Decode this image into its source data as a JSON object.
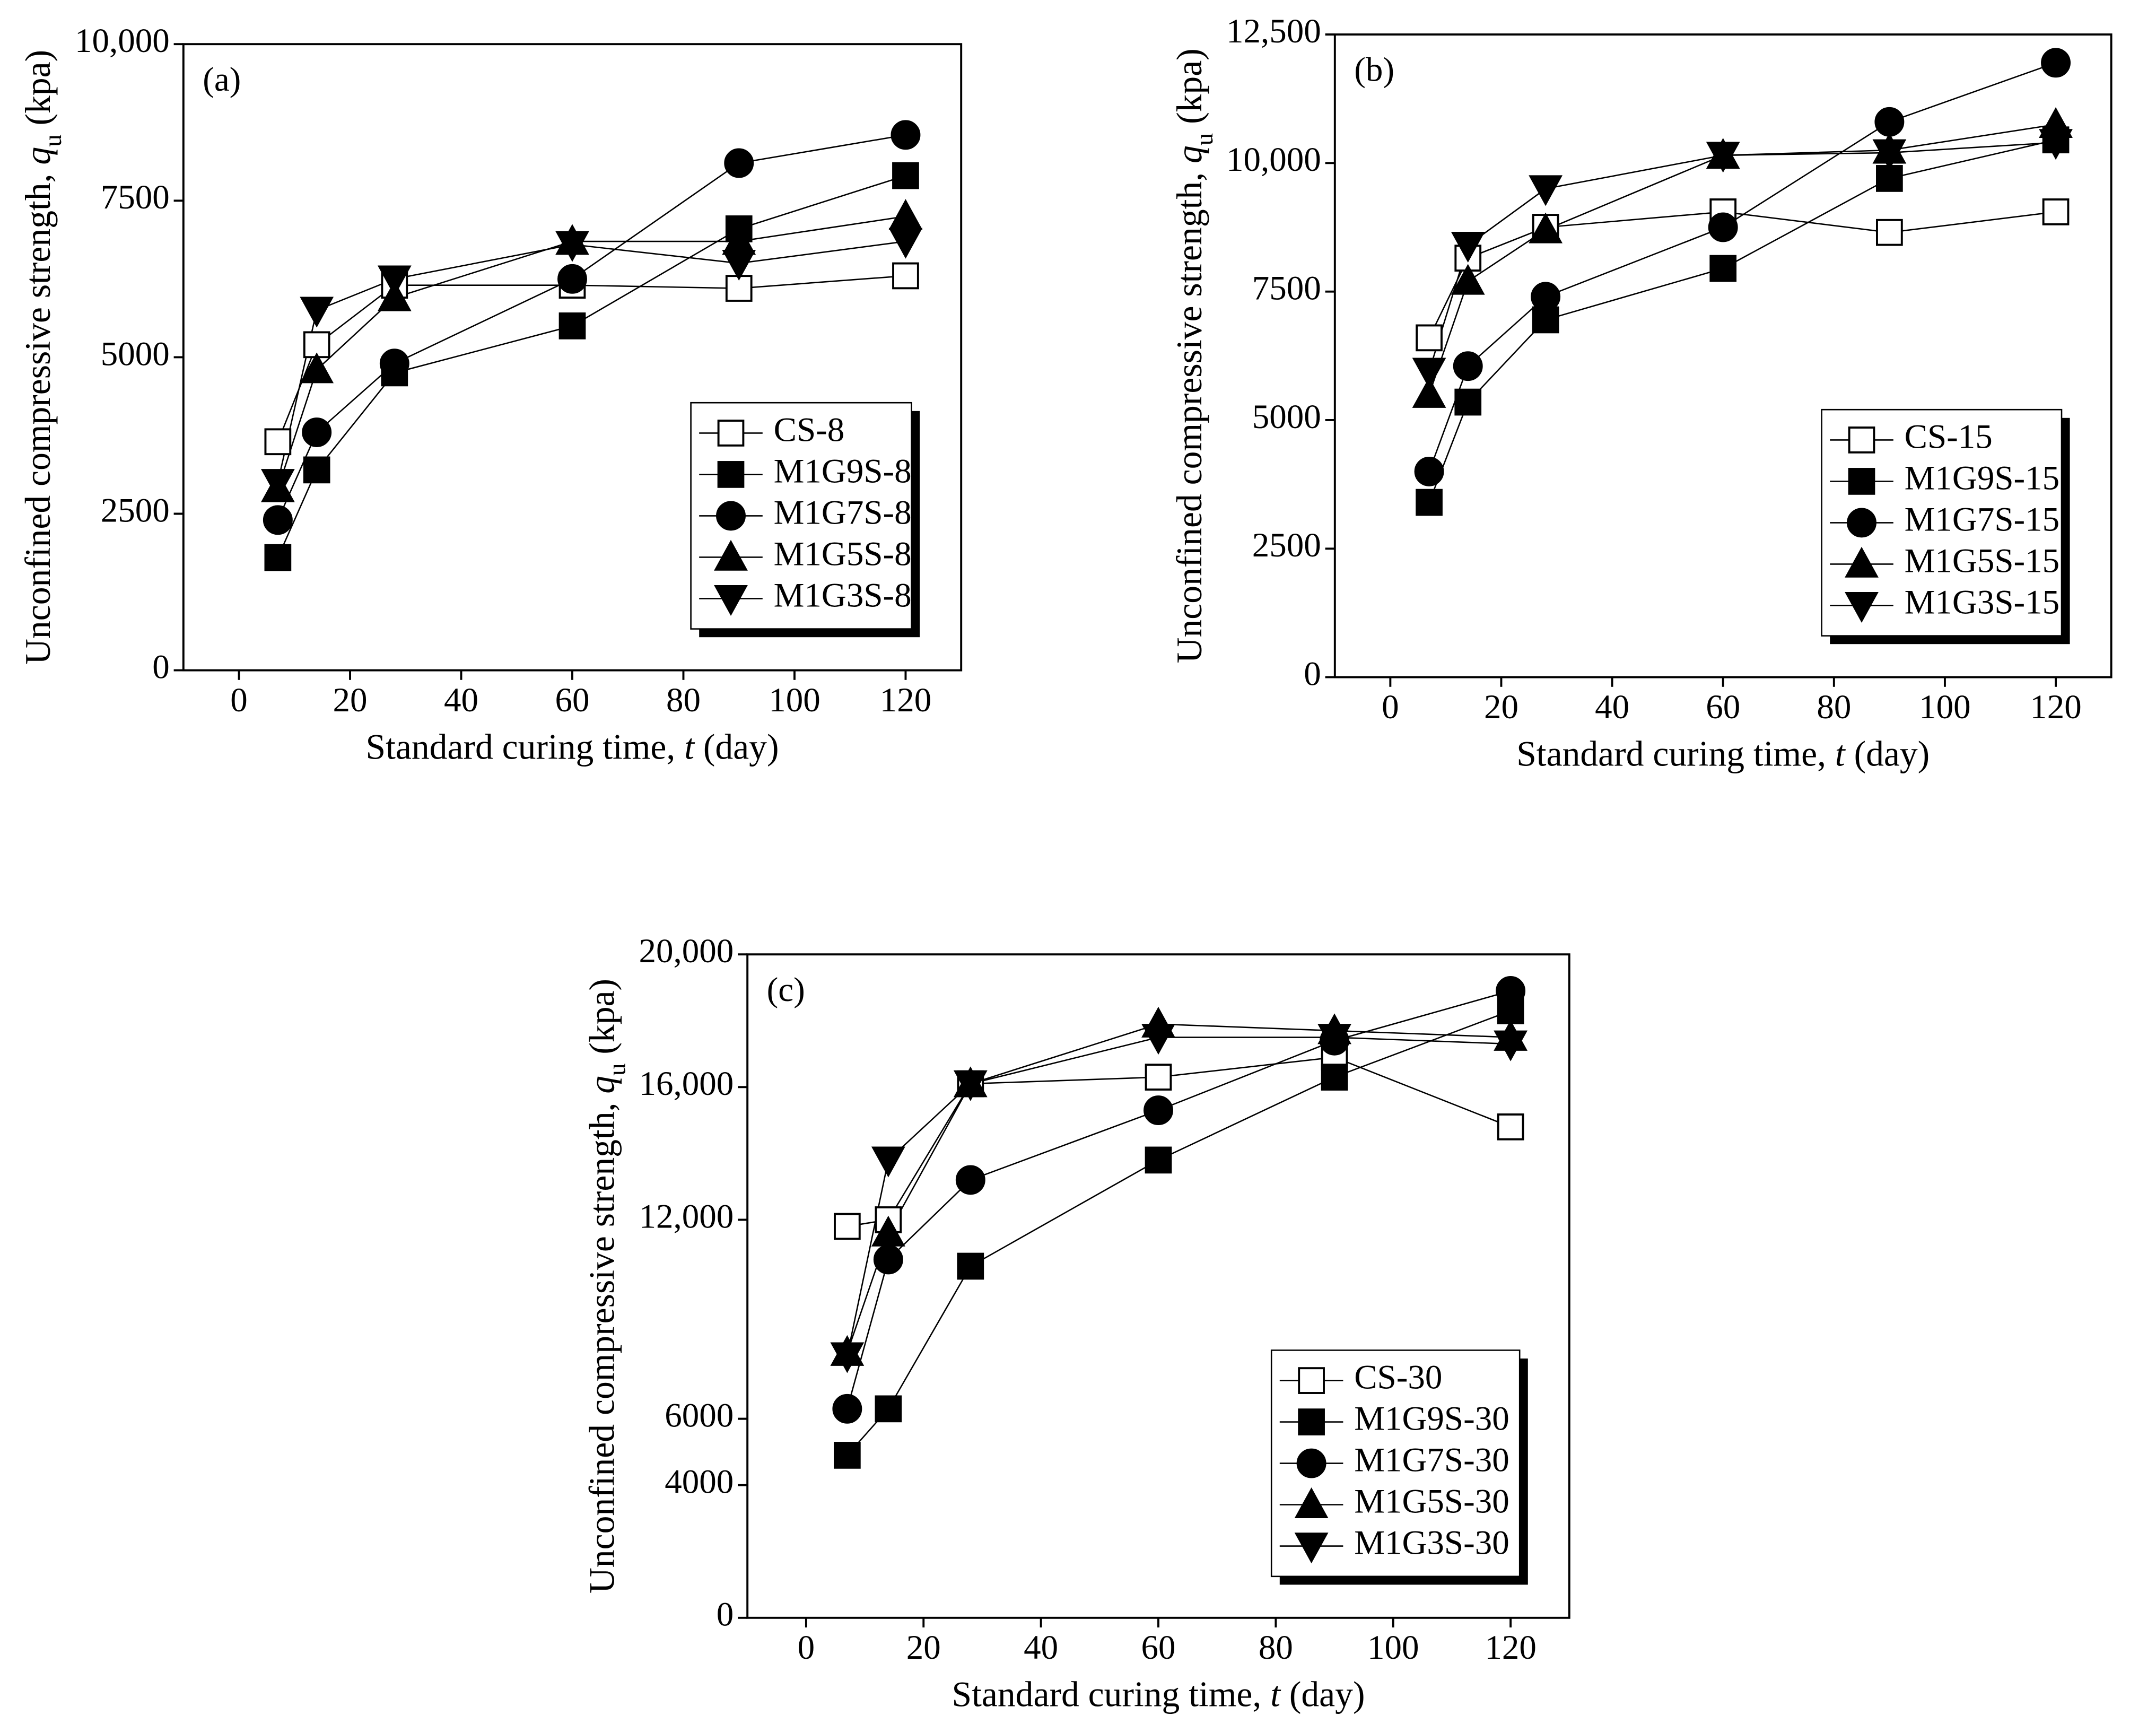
{
  "chart_data": [
    {
      "type": "line",
      "annotation": "(a)",
      "xlabel": [
        "Standard curing time, ",
        "t",
        " (day)"
      ],
      "ylabel": [
        "Unconfined compressive strength, ",
        "q",
        "u",
        " (kpa)"
      ],
      "x": [
        7,
        14,
        28,
        60,
        90,
        120
      ],
      "xlim": [
        -10,
        130
      ],
      "xticks": [
        0,
        20,
        40,
        60,
        80,
        100,
        120
      ],
      "ylim": [
        0,
        10000
      ],
      "yticks": [
        0,
        2500,
        5000,
        7500,
        {
          "value": 10000,
          "label": "10,000"
        }
      ],
      "legend": "lower right",
      "series": [
        {
          "name": "CS-8",
          "color": "#000000",
          "marker": "square-open",
          "values": [
            3650,
            5200,
            6150,
            6150,
            6100,
            6300
          ]
        },
        {
          "name": "M1G9S-8",
          "color": "#000000",
          "marker": "square",
          "values": [
            1800,
            3200,
            4750,
            5500,
            7050,
            7900
          ]
        },
        {
          "name": "M1G7S-8",
          "color": "#000000",
          "marker": "circle",
          "values": [
            2400,
            3800,
            4900,
            6250,
            8100,
            8550
          ]
        },
        {
          "name": "M1G5S-8",
          "color": "#000000",
          "marker": "triangle-up",
          "values": [
            2900,
            4800,
            5950,
            6850,
            6850,
            7250
          ]
        },
        {
          "name": "M1G3S-8",
          "color": "#000000",
          "marker": "triangle-down",
          "values": [
            3000,
            5750,
            6250,
            6800,
            6500,
            6850
          ]
        }
      ]
    },
    {
      "type": "line",
      "annotation": "(b)",
      "xlabel": [
        "Standard curing time, ",
        "t",
        " (day)"
      ],
      "ylabel": [
        "Unconfined compressive strength, ",
        "q",
        "u",
        " (kpa)"
      ],
      "x": [
        7,
        14,
        28,
        60,
        90,
        120
      ],
      "xlim": [
        -10,
        130
      ],
      "xticks": [
        0,
        20,
        40,
        60,
        80,
        100,
        120
      ],
      "ylim": [
        0,
        12500
      ],
      "yticks": [
        0,
        2500,
        5000,
        7500,
        {
          "value": 10000,
          "label": "10,000"
        },
        {
          "value": 12500,
          "label": "12,500"
        }
      ],
      "legend": "lower right",
      "series": [
        {
          "name": "CS-15",
          "color": "#000000",
          "marker": "square-open",
          "values": [
            6600,
            8150,
            8750,
            9050,
            8650,
            9050
          ]
        },
        {
          "name": "M1G9S-15",
          "color": "#000000",
          "marker": "square",
          "values": [
            3400,
            5350,
            6950,
            7950,
            9700,
            10450
          ]
        },
        {
          "name": "M1G7S-15",
          "color": "#000000",
          "marker": "circle",
          "values": [
            4000,
            6050,
            7400,
            8750,
            10800,
            11950
          ]
        },
        {
          "name": "M1G5S-15",
          "color": "#000000",
          "marker": "triangle-up",
          "values": [
            5500,
            7700,
            8700,
            10150,
            10250,
            10750
          ]
        },
        {
          "name": "M1G3S-15",
          "color": "#000000",
          "marker": "triangle-down",
          "values": [
            5950,
            8400,
            9500,
            10150,
            10200,
            10400
          ]
        }
      ]
    },
    {
      "type": "line",
      "annotation": "(c)",
      "xlabel": [
        "Standard curing time, ",
        "t",
        " (day)"
      ],
      "ylabel": [
        "Unconfined compressive strength, ",
        "q",
        "u",
        " (kpa)"
      ],
      "x": [
        7,
        14,
        28,
        60,
        90,
        120
      ],
      "xlim": [
        -10,
        130
      ],
      "xticks": [
        0,
        20,
        40,
        60,
        80,
        100,
        120
      ],
      "ylim": [
        0,
        20000
      ],
      "yticks": [
        0,
        4000,
        6000,
        {
          "value": 12000,
          "label": "12,000"
        },
        {
          "value": 16000,
          "label": "16,000"
        },
        {
          "value": 20000,
          "label": "20,000"
        }
      ],
      "legend": "lower right",
      "series": [
        {
          "name": "CS-30",
          "color": "#000000",
          "marker": "square-open",
          "values": [
            11800,
            12000,
            16100,
            16300,
            16900,
            14800
          ]
        },
        {
          "name": "M1G9S-30",
          "color": "#000000",
          "marker": "square",
          "values": [
            4900,
            6300,
            10600,
            13800,
            16300,
            18300
          ]
        },
        {
          "name": "M1G7S-30",
          "color": "#000000",
          "marker": "circle",
          "values": [
            6300,
            10800,
            13200,
            15300,
            17400,
            18900
          ]
        },
        {
          "name": "M1G5S-30",
          "color": "#000000",
          "marker": "triangle-up",
          "values": [
            8000,
            11600,
            16100,
            17900,
            17700,
            17500
          ]
        },
        {
          "name": "M1G3S-30",
          "color": "#000000",
          "marker": "triangle-down",
          "values": [
            7900,
            13800,
            16100,
            17500,
            17500,
            17300
          ]
        }
      ]
    }
  ]
}
